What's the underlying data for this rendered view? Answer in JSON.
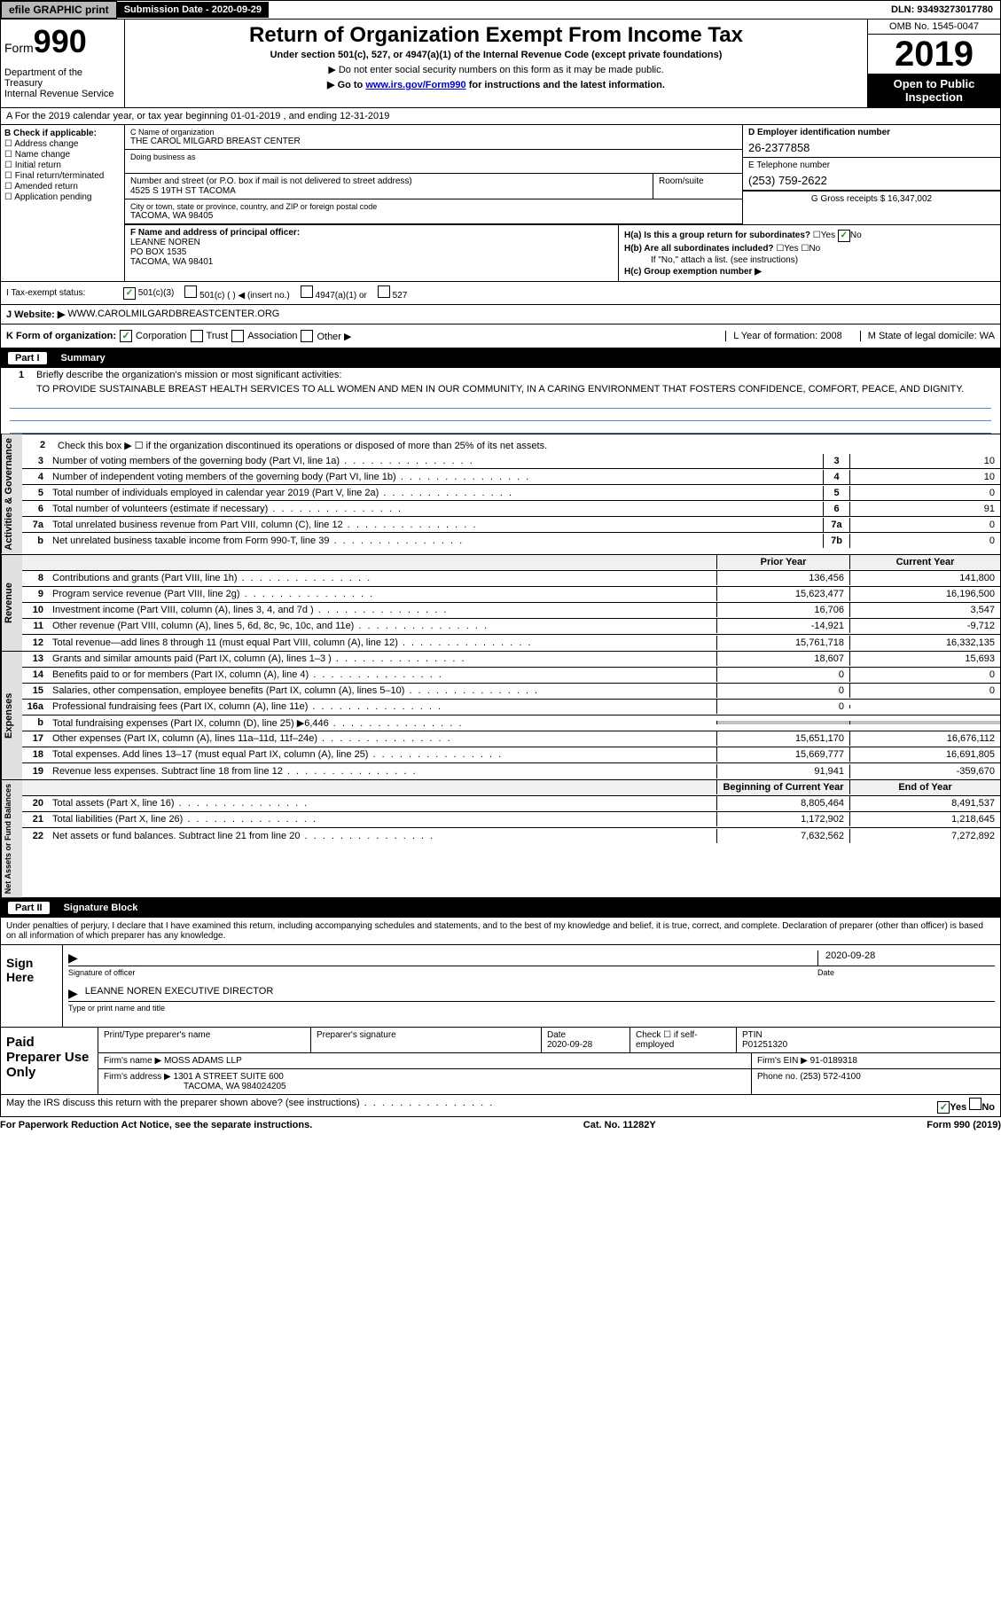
{
  "topbar": {
    "efile": "efile GRAPHIC print",
    "submission_label": "Submission Date - 2020-09-29",
    "dln": "DLN: 93493273017780"
  },
  "header": {
    "form_prefix": "Form",
    "form_num": "990",
    "dept": "Department of the Treasury\nInternal Revenue Service",
    "title": "Return of Organization Exempt From Income Tax",
    "sub1": "Under section 501(c), 527, or 4947(a)(1) of the Internal Revenue Code (except private foundations)",
    "sub2": "▶ Do not enter social security numbers on this form as it may be made public.",
    "sub3_pre": "▶ Go to ",
    "sub3_link": "www.irs.gov/Form990",
    "sub3_post": " for instructions and the latest information.",
    "omb": "OMB No. 1545-0047",
    "year": "2019",
    "open": "Open to Public Inspection"
  },
  "row_a": "A   For the 2019 calendar year, or tax year beginning 01-01-2019    , and ending 12-31-2019",
  "col_b": {
    "header": "B Check if applicable:",
    "items": [
      "Address change",
      "Name change",
      "Initial return",
      "Final return/terminated",
      "Amended return",
      "Application pending"
    ]
  },
  "name": {
    "c_label": "C Name of organization",
    "c_val": "THE CAROL MILGARD BREAST CENTER",
    "dba_label": "Doing business as",
    "addr_label": "Number and street (or P.O. box if mail is not delivered to street address)",
    "addr_val": "4525 S 19TH ST TACOMA",
    "suite_label": "Room/suite",
    "city_label": "City or town, state or province, country, and ZIP or foreign postal code",
    "city_val": "TACOMA, WA  98405"
  },
  "right_col": {
    "d_label": "D Employer identification number",
    "d_val": "26-2377858",
    "e_label": "E Telephone number",
    "e_val": "(253) 759-2622",
    "g_label": "G Gross receipts $ 16,347,002"
  },
  "f": {
    "label": "F  Name and address of principal officer:",
    "name": "LEANNE NOREN",
    "addr1": "PO BOX 1535",
    "addr2": "TACOMA, WA  98401"
  },
  "h": {
    "a": "H(a)  Is this a group return for subordinates?",
    "a_yes": "Yes",
    "a_no": "No",
    "b": "H(b)  Are all subordinates included?",
    "b_yes": "Yes",
    "b_no": "No",
    "b_note": "If \"No,\" attach a list. (see instructions)",
    "c": "H(c)  Group exemption number ▶"
  },
  "tax_status": {
    "label": "I   Tax-exempt status:",
    "opt1": "501(c)(3)",
    "opt2": "501(c) (  ) ◀ (insert no.)",
    "opt3": "4947(a)(1) or",
    "opt4": "527"
  },
  "website": {
    "label": "J   Website: ▶",
    "val": "WWW.CAROLMILGARDBREASTCENTER.ORG"
  },
  "klm": {
    "k": "K Form of organization:",
    "k_opts": [
      "Corporation",
      "Trust",
      "Association",
      "Other ▶"
    ],
    "l": "L Year of formation: 2008",
    "m": "M State of legal domicile: WA"
  },
  "part1": {
    "header": "Part I",
    "title": "Summary",
    "line1": "Briefly describe the organization's mission or most significant activities:",
    "mission": "TO PROVIDE SUSTAINABLE BREAST HEALTH SERVICES TO ALL WOMEN AND MEN IN OUR COMMUNITY, IN A CARING ENVIRONMENT THAT FOSTERS CONFIDENCE, COMFORT, PEACE, AND DIGNITY.",
    "line2": "Check this box ▶ ☐ if the organization discontinued its operations or disposed of more than 25% of its net assets."
  },
  "activities": {
    "label": "Activities & Governance",
    "rows": [
      {
        "n": "3",
        "d": "Number of voting members of the governing body (Part VI, line 1a)",
        "box": "3",
        "v": "10"
      },
      {
        "n": "4",
        "d": "Number of independent voting members of the governing body (Part VI, line 1b)",
        "box": "4",
        "v": "10"
      },
      {
        "n": "5",
        "d": "Total number of individuals employed in calendar year 2019 (Part V, line 2a)",
        "box": "5",
        "v": "0"
      },
      {
        "n": "6",
        "d": "Total number of volunteers (estimate if necessary)",
        "box": "6",
        "v": "91"
      },
      {
        "n": "7a",
        "d": "Total unrelated business revenue from Part VIII, column (C), line 12",
        "box": "7a",
        "v": "0"
      },
      {
        "n": "b",
        "d": "Net unrelated business taxable income from Form 990-T, line 39",
        "box": "7b",
        "v": "0"
      }
    ]
  },
  "revenue": {
    "label": "Revenue",
    "hdr_prior": "Prior Year",
    "hdr_curr": "Current Year",
    "rows": [
      {
        "n": "8",
        "d": "Contributions and grants (Part VIII, line 1h)",
        "p": "136,456",
        "c": "141,800"
      },
      {
        "n": "9",
        "d": "Program service revenue (Part VIII, line 2g)",
        "p": "15,623,477",
        "c": "16,196,500"
      },
      {
        "n": "10",
        "d": "Investment income (Part VIII, column (A), lines 3, 4, and 7d )",
        "p": "16,706",
        "c": "3,547"
      },
      {
        "n": "11",
        "d": "Other revenue (Part VIII, column (A), lines 5, 6d, 8c, 9c, 10c, and 11e)",
        "p": "-14,921",
        "c": "-9,712"
      },
      {
        "n": "12",
        "d": "Total revenue—add lines 8 through 11 (must equal Part VIII, column (A), line 12)",
        "p": "15,761,718",
        "c": "16,332,135"
      }
    ]
  },
  "expenses": {
    "label": "Expenses",
    "rows": [
      {
        "n": "13",
        "d": "Grants and similar amounts paid (Part IX, column (A), lines 1–3 )",
        "p": "18,607",
        "c": "15,693"
      },
      {
        "n": "14",
        "d": "Benefits paid to or for members (Part IX, column (A), line 4)",
        "p": "0",
        "c": "0"
      },
      {
        "n": "15",
        "d": "Salaries, other compensation, employee benefits (Part IX, column (A), lines 5–10)",
        "p": "0",
        "c": "0"
      },
      {
        "n": "16a",
        "d": "Professional fundraising fees (Part IX, column (A), line 11e)",
        "p": "0",
        "c": ""
      },
      {
        "n": "b",
        "d": "Total fundraising expenses (Part IX, column (D), line 25) ▶6,446",
        "p": "",
        "c": "",
        "shade": true
      },
      {
        "n": "17",
        "d": "Other expenses (Part IX, column (A), lines 11a–11d, 11f–24e)",
        "p": "15,651,170",
        "c": "16,676,112"
      },
      {
        "n": "18",
        "d": "Total expenses. Add lines 13–17 (must equal Part IX, column (A), line 25)",
        "p": "15,669,777",
        "c": "16,691,805"
      },
      {
        "n": "19",
        "d": "Revenue less expenses. Subtract line 18 from line 12",
        "p": "91,941",
        "c": "-359,670"
      }
    ]
  },
  "netassets": {
    "label": "Net Assets or Fund Balances",
    "hdr_begin": "Beginning of Current Year",
    "hdr_end": "End of Year",
    "rows": [
      {
        "n": "20",
        "d": "Total assets (Part X, line 16)",
        "p": "8,805,464",
        "c": "8,491,537"
      },
      {
        "n": "21",
        "d": "Total liabilities (Part X, line 26)",
        "p": "1,172,902",
        "c": "1,218,645"
      },
      {
        "n": "22",
        "d": "Net assets or fund balances. Subtract line 21 from line 20",
        "p": "7,632,562",
        "c": "7,272,892"
      }
    ]
  },
  "part2": {
    "header": "Part II",
    "title": "Signature Block",
    "penalty": "Under penalties of perjury, I declare that I have examined this return, including accompanying schedules and statements, and to the best of my knowledge and belief, it is true, correct, and complete. Declaration of preparer (other than officer) is based on all information of which preparer has any knowledge."
  },
  "sign": {
    "label": "Sign Here",
    "sig_label": "Signature of officer",
    "date": "2020-09-28",
    "date_label": "Date",
    "name": "LEANNE NOREN  EXECUTIVE DIRECTOR",
    "name_label": "Type or print name and title"
  },
  "preparer": {
    "label": "Paid Preparer Use Only",
    "h1": "Print/Type preparer's name",
    "h2": "Preparer's signature",
    "h3": "Date",
    "h3v": "2020-09-28",
    "h4": "Check ☐ if self-employed",
    "h5": "PTIN",
    "h5v": "P01251320",
    "firm_label": "Firm's name    ▶",
    "firm": "MOSS ADAMS LLP",
    "ein_label": "Firm's EIN ▶",
    "ein": "91-0189318",
    "addr_label": "Firm's address ▶",
    "addr1": "1301 A STREET SUITE 600",
    "addr2": "TACOMA, WA  984024205",
    "phone_label": "Phone no.",
    "phone": "(253) 572-4100"
  },
  "irs_discuss": {
    "q": "May the IRS discuss this return with the preparer shown above? (see instructions)",
    "yes": "Yes",
    "no": "No"
  },
  "footer": {
    "left": "For Paperwork Reduction Act Notice, see the separate instructions.",
    "mid": "Cat. No. 11282Y",
    "right": "Form 990 (2019)"
  }
}
